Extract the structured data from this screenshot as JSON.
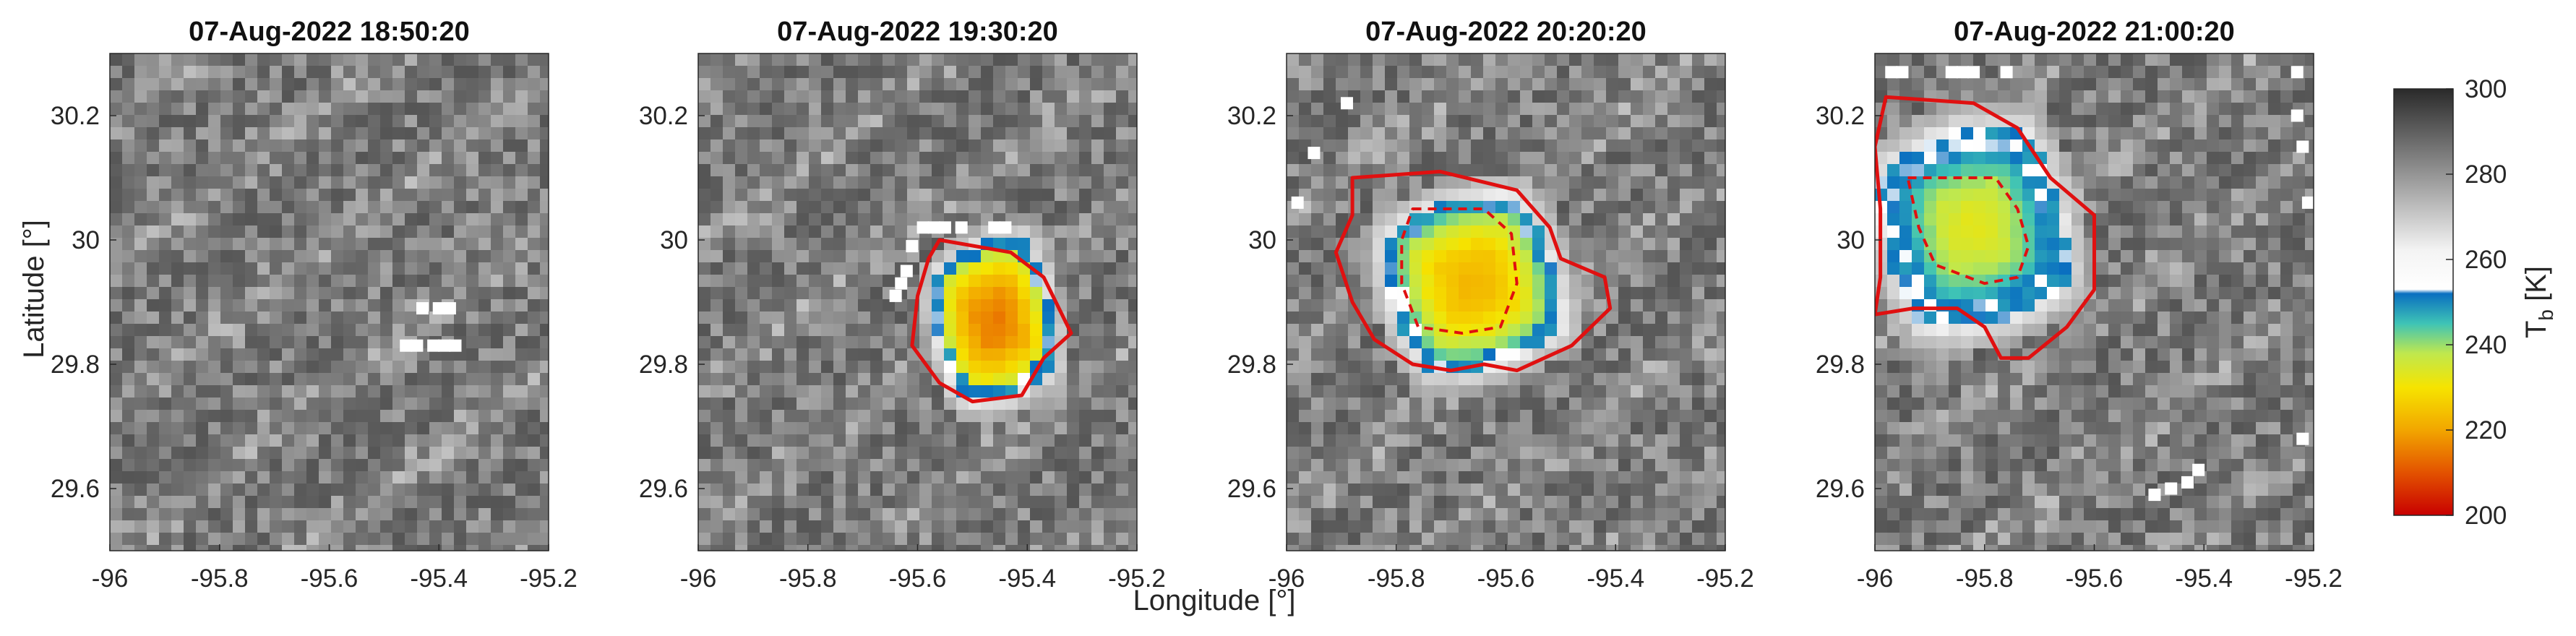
{
  "chart_data": [
    {
      "type": "heatmap",
      "title": "07-Aug-2022 18:50:20",
      "xlim": [
        -96,
        -95.2
      ],
      "ylim": [
        29.5,
        30.3
      ],
      "xticks": [
        "-96",
        "-95.8",
        "-95.6",
        "-95.4",
        "-95.2"
      ],
      "yticks": [
        "29.6",
        "29.8",
        "30",
        "30.2"
      ],
      "cold_cloud": null,
      "white_pixels": [
        [
          -95.43,
          29.89
        ],
        [
          -95.4,
          29.89
        ],
        [
          -95.38,
          29.89
        ],
        [
          -95.46,
          29.83
        ],
        [
          -95.44,
          29.83
        ],
        [
          -95.41,
          29.83
        ],
        [
          -95.39,
          29.83
        ],
        [
          -95.37,
          29.83
        ]
      ]
    },
    {
      "type": "heatmap",
      "title": "07-Aug-2022 19:30:20",
      "xlim": [
        -96,
        -95.2
      ],
      "ylim": [
        29.5,
        30.3
      ],
      "xticks": [
        "-96",
        "-95.8",
        "-95.6",
        "-95.4",
        "-95.2"
      ],
      "yticks": [
        "29.6",
        "29.8",
        "30",
        "30.2"
      ],
      "cold_cloud": {
        "center": [
          -95.46,
          29.87
        ],
        "min_tb": 214,
        "core_radius": [
          0.09,
          0.11
        ]
      },
      "contour_solid": [
        [
          -95.56,
          30.0
        ],
        [
          -95.43,
          29.98
        ],
        [
          -95.37,
          29.94
        ],
        [
          -95.32,
          29.85
        ],
        [
          -95.37,
          29.81
        ],
        [
          -95.41,
          29.75
        ],
        [
          -95.5,
          29.74
        ],
        [
          -95.56,
          29.77
        ],
        [
          -95.61,
          29.83
        ],
        [
          -95.6,
          29.91
        ],
        [
          -95.58,
          29.97
        ]
      ],
      "white_pixels": [
        [
          -95.59,
          30.02
        ],
        [
          -95.57,
          30.02
        ],
        [
          -95.55,
          30.02
        ],
        [
          -95.52,
          30.02
        ],
        [
          -95.46,
          30.02
        ],
        [
          -95.44,
          30.02
        ],
        [
          -95.61,
          29.99
        ],
        [
          -95.62,
          29.95
        ],
        [
          -95.63,
          29.93
        ],
        [
          -95.64,
          29.91
        ]
      ]
    },
    {
      "type": "heatmap",
      "title": "07-Aug-2022 20:20:20",
      "xlim": [
        -96,
        -95.2
      ],
      "ylim": [
        29.5,
        30.3
      ],
      "xticks": [
        "-96",
        "-95.8",
        "-95.6",
        "-95.4",
        "-95.2"
      ],
      "yticks": [
        "29.6",
        "29.8",
        "30",
        "30.2"
      ],
      "cold_cloud": {
        "center": [
          -95.66,
          29.93
        ],
        "min_tb": 221,
        "core_radius": [
          0.13,
          0.12
        ]
      },
      "contour_solid": [
        [
          -95.88,
          30.1
        ],
        [
          -95.72,
          30.11
        ],
        [
          -95.58,
          30.08
        ],
        [
          -95.52,
          30.02
        ],
        [
          -95.5,
          29.97
        ],
        [
          -95.42,
          29.94
        ],
        [
          -95.41,
          29.89
        ],
        [
          -95.48,
          29.83
        ],
        [
          -95.58,
          29.79
        ],
        [
          -95.64,
          29.8
        ],
        [
          -95.7,
          29.79
        ],
        [
          -95.77,
          29.8
        ],
        [
          -95.84,
          29.84
        ],
        [
          -95.88,
          29.9
        ],
        [
          -95.91,
          29.98
        ],
        [
          -95.88,
          30.04
        ]
      ],
      "contour_dashed": [
        [
          -95.77,
          30.05
        ],
        [
          -95.64,
          30.05
        ],
        [
          -95.59,
          30.01
        ],
        [
          -95.58,
          29.93
        ],
        [
          -95.61,
          29.86
        ],
        [
          -95.68,
          29.85
        ],
        [
          -95.76,
          29.86
        ],
        [
          -95.79,
          29.93
        ],
        [
          -95.79,
          30.0
        ]
      ],
      "white_pixels": [
        [
          -95.89,
          30.22
        ],
        [
          -95.95,
          30.14
        ],
        [
          -95.98,
          30.06
        ]
      ]
    },
    {
      "type": "heatmap",
      "title": "07-Aug-2022 21:00:20",
      "xlim": [
        -96,
        -95.2
      ],
      "ylim": [
        29.5,
        30.3
      ],
      "xticks": [
        "-96",
        "-95.8",
        "-95.6",
        "-95.4",
        "-95.2"
      ],
      "yticks": [
        "29.6",
        "29.8",
        "30",
        "30.2"
      ],
      "cold_cloud": {
        "center": [
          -95.82,
          30.02
        ],
        "min_tb": 232,
        "core_radius": [
          0.14,
          0.14
        ]
      },
      "contour_solid": [
        [
          -95.98,
          30.23
        ],
        [
          -95.82,
          30.22
        ],
        [
          -95.74,
          30.18
        ],
        [
          -95.68,
          30.1
        ],
        [
          -95.6,
          30.04
        ],
        [
          -95.6,
          29.92
        ],
        [
          -95.65,
          29.86
        ],
        [
          -95.72,
          29.81
        ],
        [
          -95.77,
          29.81
        ],
        [
          -95.8,
          29.86
        ],
        [
          -95.85,
          29.89
        ],
        [
          -95.93,
          29.89
        ],
        [
          -96.0,
          29.88
        ],
        [
          -95.99,
          29.94
        ],
        [
          -95.99,
          30.05
        ],
        [
          -96.0,
          30.15
        ]
      ],
      "contour_dashed": [
        [
          -95.94,
          30.1
        ],
        [
          -95.78,
          30.1
        ],
        [
          -95.74,
          30.05
        ],
        [
          -95.72,
          29.99
        ],
        [
          -95.74,
          29.94
        ],
        [
          -95.8,
          29.93
        ],
        [
          -95.89,
          29.96
        ],
        [
          -95.92,
          30.02
        ]
      ],
      "white_pixels": [
        [
          -95.97,
          30.27
        ],
        [
          -95.95,
          30.27
        ],
        [
          -95.86,
          30.27
        ],
        [
          -95.84,
          30.27
        ],
        [
          -95.82,
          30.27
        ],
        [
          -95.76,
          30.27
        ],
        [
          -95.41,
          29.63
        ],
        [
          -95.43,
          29.61
        ],
        [
          -95.46,
          29.6
        ],
        [
          -95.49,
          29.59
        ],
        [
          -95.22,
          29.68
        ],
        [
          -95.23,
          30.27
        ],
        [
          -95.23,
          30.2
        ],
        [
          -95.22,
          30.15
        ],
        [
          -95.21,
          30.06
        ]
      ]
    }
  ],
  "xlabel": "Longitude [°]",
  "ylabel": "Latitude [°]",
  "colorbar": {
    "label": "T",
    "label_sub": "b",
    "label_unit": "[K]",
    "range": [
      200,
      300
    ],
    "ticks": [
      "200",
      "220",
      "240",
      "260",
      "280",
      "300"
    ],
    "stops": [
      {
        "value": 200,
        "color": "#c80000"
      },
      {
        "value": 210,
        "color": "#e35200"
      },
      {
        "value": 220,
        "color": "#f2a600"
      },
      {
        "value": 230,
        "color": "#f6e400"
      },
      {
        "value": 238,
        "color": "#bfe84e"
      },
      {
        "value": 245,
        "color": "#3ec3b6"
      },
      {
        "value": 252,
        "color": "#0a6fc0"
      },
      {
        "value": 253,
        "color": "#ffffff"
      },
      {
        "value": 262,
        "color": "#f4f4f4"
      },
      {
        "value": 300,
        "color": "#2a2a2a"
      }
    ]
  }
}
